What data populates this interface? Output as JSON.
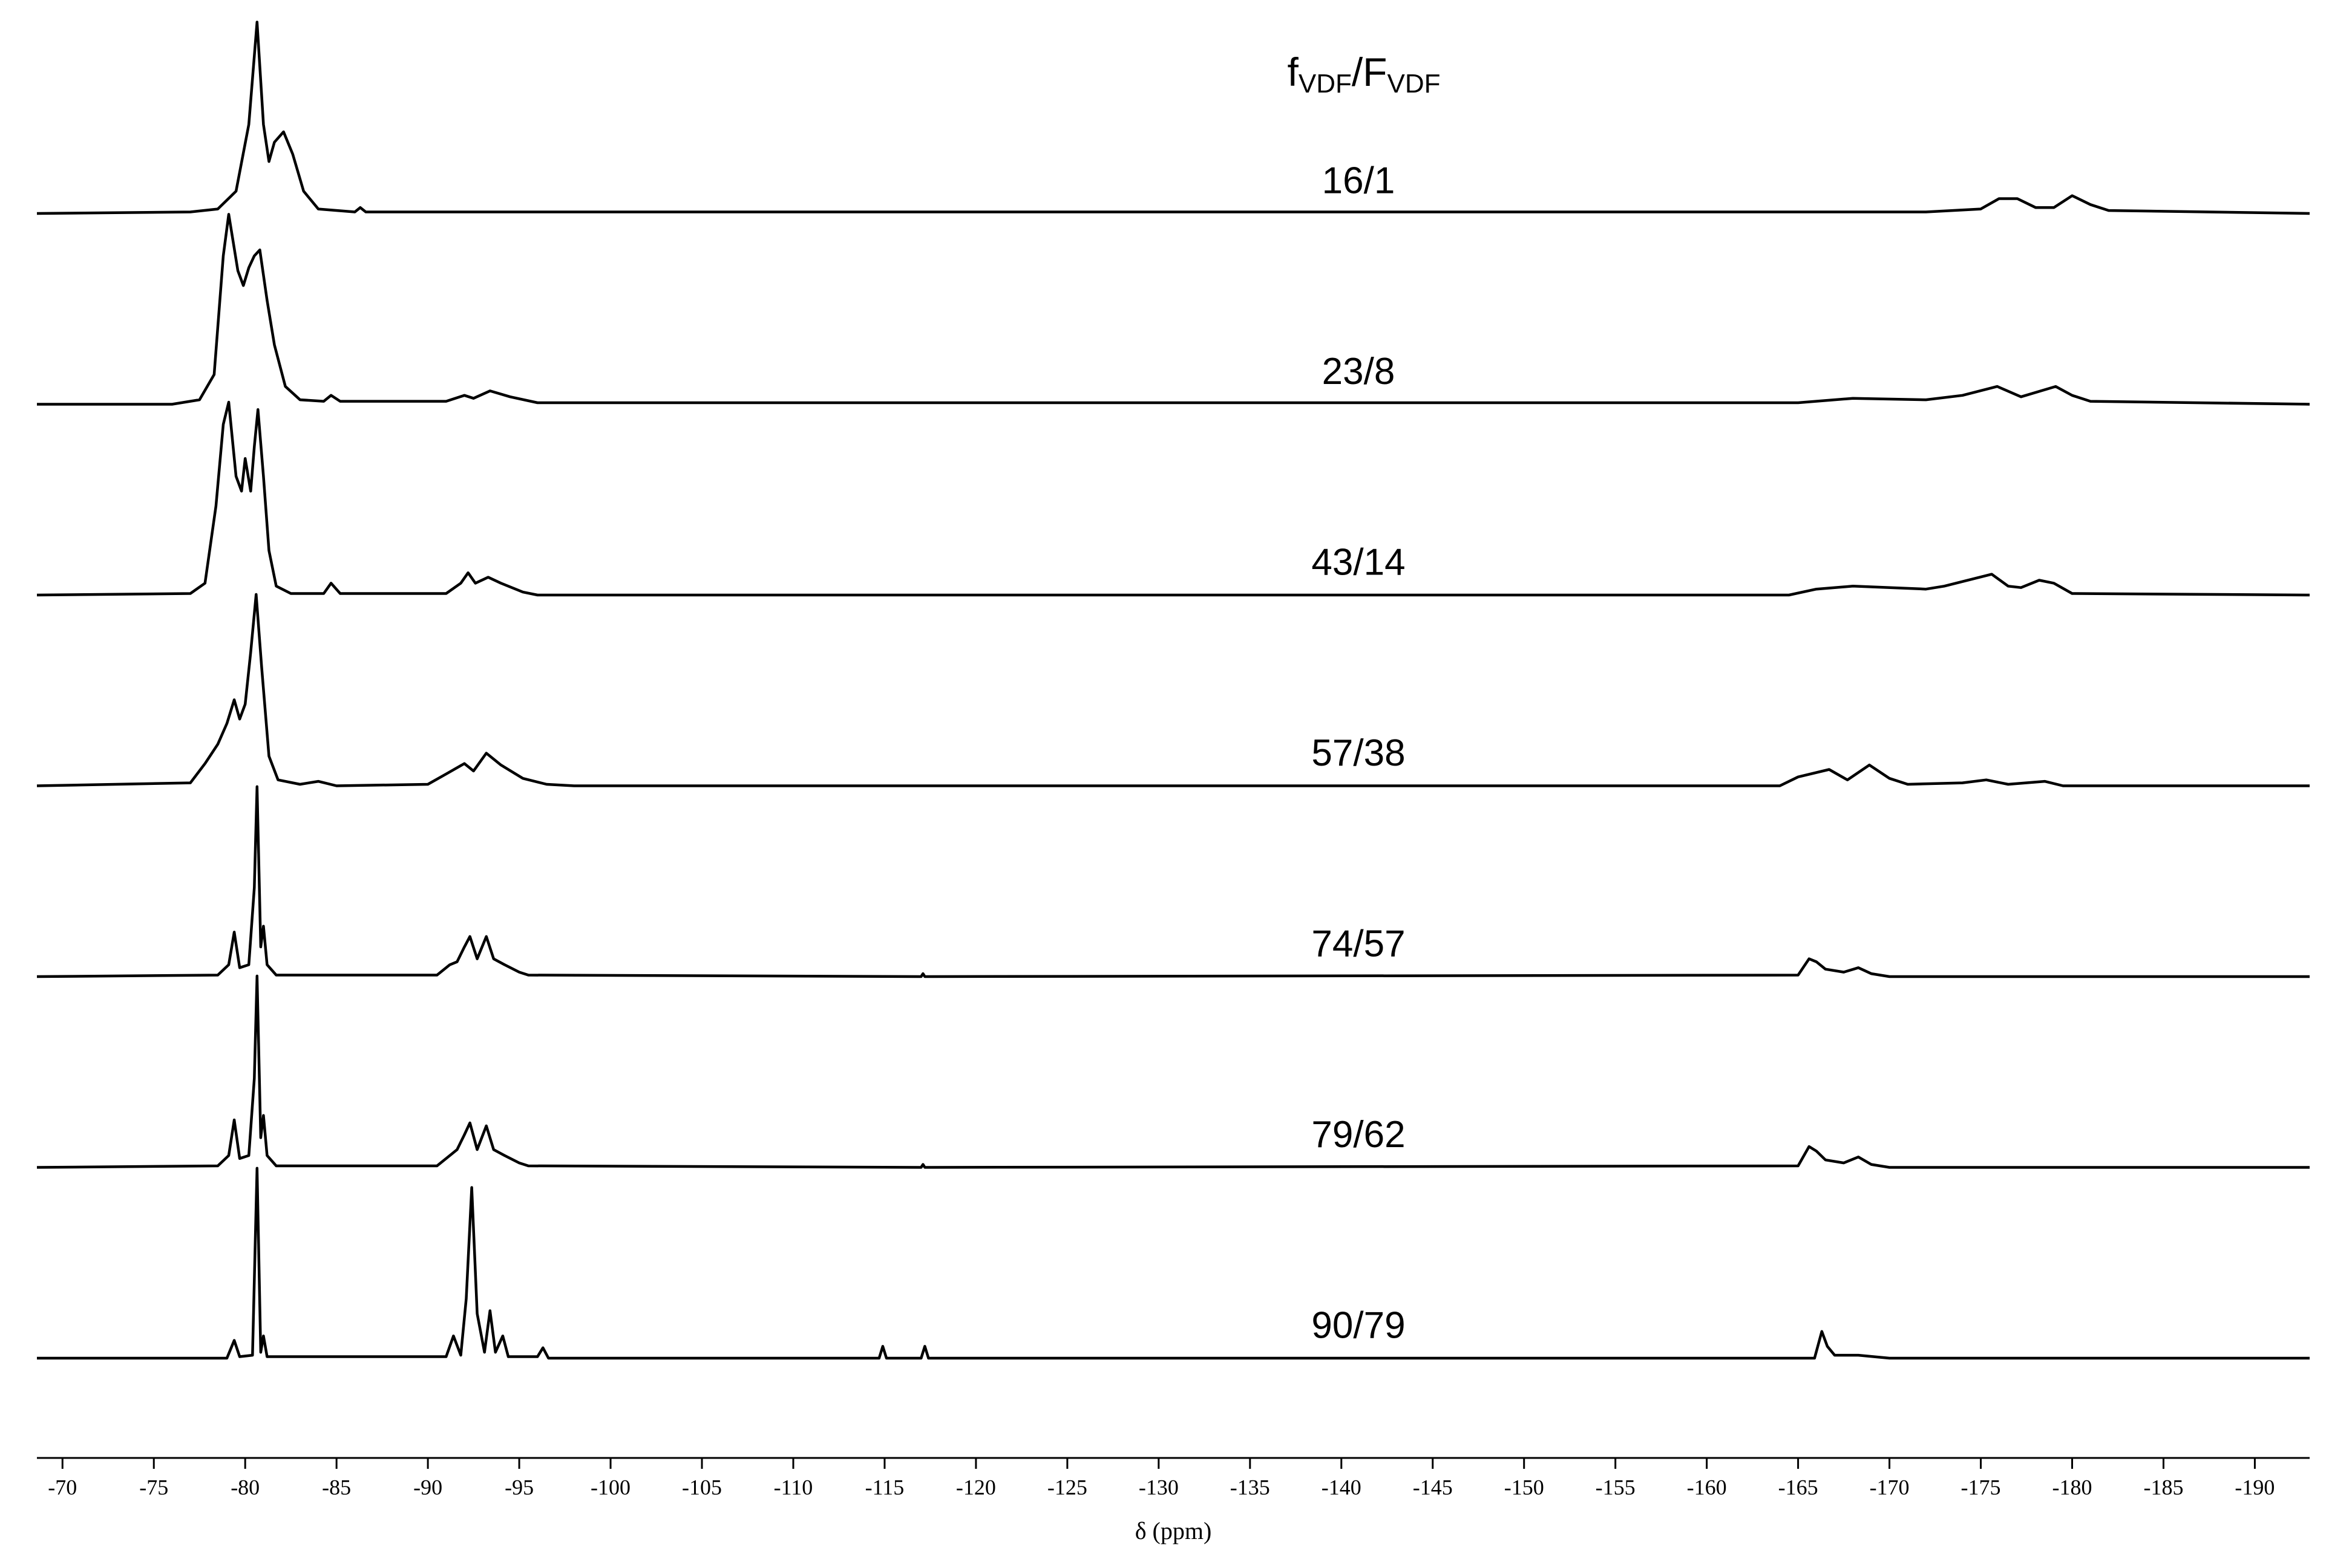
{
  "chart_data": {
    "type": "line",
    "title": [
      "f",
      "VDF",
      "/F",
      "VDF"
    ],
    "xlabel": "δ (ppm)",
    "xlim": [
      -68.6,
      -193
    ],
    "xticks": [
      -70,
      -75,
      -80,
      -85,
      -90,
      -95,
      -100,
      -105,
      -110,
      -115,
      -120,
      -125,
      -130,
      -135,
      -140,
      -145,
      -150,
      -155,
      -160,
      -165,
      -170,
      -175,
      -180,
      -185,
      -190
    ],
    "ylim": [
      0,
      130
    ],
    "series": [
      {
        "name": "16/1",
        "color": "#000000",
        "x": [
          -68.6,
          -77,
          -78.5,
          -79.5,
          -80.2,
          -80.65,
          -81.0,
          -81.3,
          -81.6,
          -82.1,
          -82.6,
          -83.2,
          -84,
          -86,
          -86.3,
          -86.6,
          -94,
          -160,
          -172,
          -175,
          -176,
          -177,
          -178,
          -179,
          -180,
          -181,
          -182,
          -193
        ],
        "values": [
          0,
          1,
          3,
          15,
          60,
          129,
          60,
          35,
          48,
          55,
          40,
          15,
          3,
          1,
          4,
          1,
          1,
          1,
          1,
          3,
          10,
          10,
          4,
          4,
          12,
          6,
          2,
          0
        ]
      },
      {
        "name": "23/8",
        "color": "#000000",
        "x": [
          -68.6,
          -76,
          -77.5,
          -78.3,
          -78.8,
          -79.1,
          -79.6,
          -79.9,
          -80.2,
          -80.5,
          -80.8,
          -81.2,
          -81.6,
          -82.2,
          -83,
          -84.3,
          -84.7,
          -85.2,
          -91,
          -92,
          -92.5,
          -93.4,
          -94.5,
          -96,
          -160,
          -165,
          -168,
          -172,
          -174,
          -175.9,
          -177.2,
          -179.1,
          -180,
          -181,
          -193
        ],
        "values": [
          0,
          0,
          3,
          20,
          100,
          128,
          90,
          80,
          92,
          100,
          104,
          70,
          40,
          12,
          3,
          2,
          6,
          2,
          2,
          6,
          4,
          9,
          5,
          1,
          1,
          1,
          4,
          3,
          6,
          12,
          5,
          12,
          6,
          2,
          0
        ]
      },
      {
        "name": "43/14",
        "color": "#000000",
        "x": [
          -68.6,
          -77,
          -77.8,
          -78.4,
          -78.8,
          -79.1,
          -79.5,
          -79.8,
          -80.0,
          -80.3,
          -80.5,
          -80.7,
          -81.0,
          -81.3,
          -81.7,
          -82.5,
          -84.3,
          -84.7,
          -85.2,
          -91,
          -91.8,
          -92.2,
          -92.6,
          -93.3,
          -94,
          -95.2,
          -96,
          -164.5,
          -166,
          -168,
          -172,
          -173,
          -175.6,
          -176.5,
          -177.2,
          -178.2,
          -179,
          -180,
          -193
        ],
        "values": [
          0,
          1,
          8,
          60,
          115,
          130,
          80,
          70,
          92,
          70,
          100,
          125,
          80,
          30,
          6,
          1,
          1,
          8,
          1,
          1,
          8,
          15,
          8,
          12,
          8,
          2,
          0,
          0,
          4,
          6,
          4,
          6,
          14,
          6,
          5,
          10,
          8,
          1,
          0
        ]
      },
      {
        "name": "57/38",
        "color": "#000000",
        "x": [
          -68.6,
          -77,
          -77.8,
          -78.5,
          -79.0,
          -79.4,
          -79.7,
          -80.0,
          -80.3,
          -80.6,
          -80.9,
          -81.3,
          -81.8,
          -83,
          -84,
          -85,
          -90,
          -91,
          -92,
          -92.5,
          -93.2,
          -94,
          -95.2,
          -96.5,
          -98,
          -164,
          -165,
          -166.7,
          -167.7,
          -168.9,
          -170,
          -171,
          -174,
          -175.3,
          -176.5,
          -178.5,
          -179.5,
          -193
        ],
        "values": [
          0,
          2,
          15,
          28,
          42,
          58,
          45,
          55,
          90,
          129,
          80,
          20,
          4,
          1,
          3,
          0,
          1,
          8,
          15,
          10,
          22,
          14,
          5,
          1,
          0,
          0,
          6,
          11,
          4,
          14,
          5,
          1,
          2,
          4,
          1,
          3,
          0,
          0
        ]
      },
      {
        "name": "74/57",
        "color": "#000000",
        "x": [
          -68.6,
          -78.5,
          -79.1,
          -79.4,
          -79.7,
          -80.2,
          -80.5,
          -80.65,
          -80.85,
          -81.0,
          -81.2,
          -81.7,
          -90.5,
          -91.2,
          -91.6,
          -92.0,
          -92.3,
          -92.7,
          -93.2,
          -93.6,
          -94.2,
          -95,
          -95.5,
          -117,
          -117.1,
          -117.2,
          -165,
          -165.6,
          -166,
          -166.5,
          -167.5,
          -168.3,
          -169,
          -170,
          -193
        ],
        "values": [
          0,
          1,
          8,
          30,
          6,
          8,
          60,
          128,
          20,
          34,
          8,
          1,
          1,
          8,
          10,
          20,
          27,
          12,
          27,
          12,
          8,
          3,
          1,
          0,
          2,
          0,
          1,
          12,
          10,
          5,
          3,
          6,
          2,
          0,
          0
        ]
      },
      {
        "name": "79/62",
        "color": "#000000",
        "x": [
          -68.6,
          -78.5,
          -79.1,
          -79.4,
          -79.7,
          -80.2,
          -80.5,
          -80.65,
          -80.85,
          -81.0,
          -81.2,
          -81.7,
          -90.5,
          -91.2,
          -91.6,
          -92.0,
          -92.3,
          -92.7,
          -93.2,
          -93.6,
          -94.2,
          -95,
          -95.5,
          -117,
          -117.1,
          -117.2,
          -165,
          -165.6,
          -166,
          -166.5,
          -167.5,
          -168.3,
          -169,
          -170,
          -193
        ],
        "values": [
          0,
          1,
          8,
          32,
          6,
          8,
          60,
          129,
          20,
          35,
          8,
          1,
          1,
          8,
          12,
          22,
          30,
          12,
          28,
          12,
          8,
          3,
          1,
          0,
          2,
          0,
          1,
          14,
          11,
          5,
          3,
          7,
          2,
          0,
          0
        ]
      },
      {
        "name": "90/79",
        "color": "#000000",
        "x": [
          -68.6,
          -79.0,
          -79.4,
          -79.7,
          -80.4,
          -80.65,
          -80.85,
          -81.0,
          -81.2,
          -91.0,
          -91.4,
          -91.8,
          -92.1,
          -92.4,
          -92.7,
          -93.1,
          -93.4,
          -93.7,
          -94.1,
          -94.4,
          -96.0,
          -96.3,
          -96.6,
          -114.7,
          -114.9,
          -115.1,
          -117.0,
          -117.2,
          -117.4,
          -165.9,
          -166.3,
          -166.6,
          -167,
          -168.3,
          -170,
          -193
        ],
        "values": [
          0,
          0,
          12,
          1,
          2,
          128,
          4,
          15,
          1,
          1,
          15,
          2,
          40,
          115,
          30,
          4,
          32,
          4,
          15,
          1,
          1,
          7,
          0,
          0,
          8,
          0,
          0,
          8,
          0,
          0,
          18,
          8,
          2,
          2,
          0,
          0
        ]
      }
    ]
  }
}
